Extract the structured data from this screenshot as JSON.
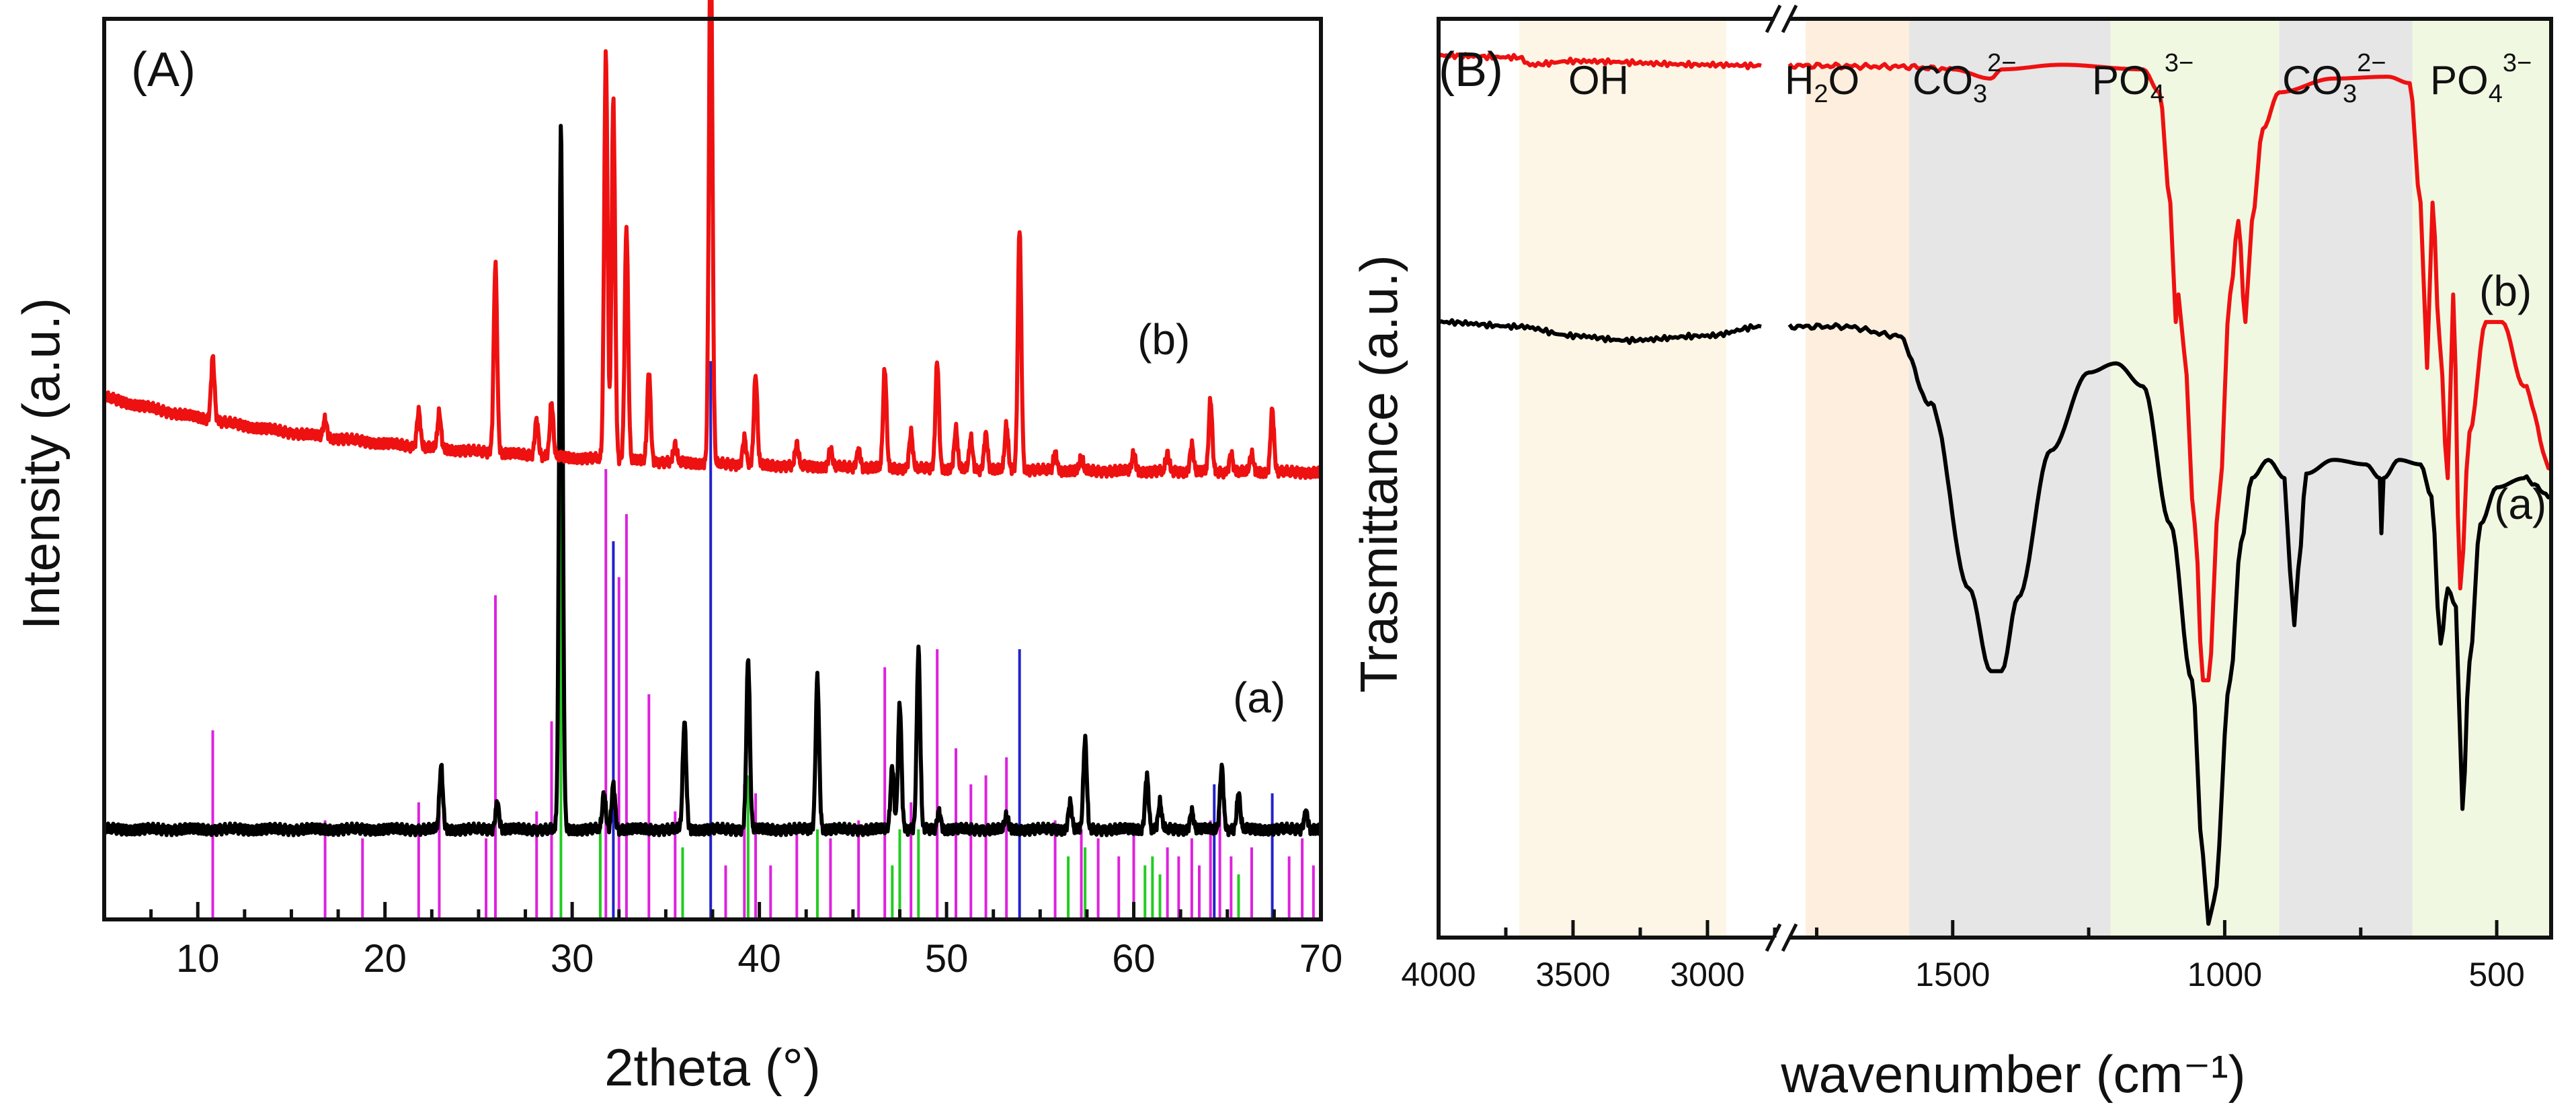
{
  "chart_data": [
    {
      "type": "line",
      "panel_label": "(A)",
      "xlabel": "2theta (°)",
      "ylabel": "Intensity (a.u.)",
      "xlim": [
        5,
        70
      ],
      "x_ticks": [
        10,
        20,
        30,
        40,
        50,
        60,
        70
      ],
      "y_ticks_labeled": false,
      "colors": {
        "a": "#000000",
        "b": "#ee1111",
        "ref_magenta": "#dd22dd",
        "ref_green": "#22cc22",
        "ref_blue": "#2222cc"
      },
      "series": [
        {
          "name": "(a)",
          "color": "#000000",
          "baseline": 0.1,
          "drift": 0.0,
          "peaks": [
            {
              "x": 23.0,
              "h": 0.07
            },
            {
              "x": 26.0,
              "h": 0.03
            },
            {
              "x": 29.4,
              "h": 0.78
            },
            {
              "x": 31.7,
              "h": 0.04
            },
            {
              "x": 32.2,
              "h": 0.05
            },
            {
              "x": 36.0,
              "h": 0.12
            },
            {
              "x": 39.4,
              "h": 0.19
            },
            {
              "x": 43.1,
              "h": 0.17
            },
            {
              "x": 47.1,
              "h": 0.07
            },
            {
              "x": 47.5,
              "h": 0.14
            },
            {
              "x": 48.5,
              "h": 0.2
            },
            {
              "x": 49.6,
              "h": 0.02
            },
            {
              "x": 53.2,
              "h": 0.015
            },
            {
              "x": 56.6,
              "h": 0.03
            },
            {
              "x": 57.4,
              "h": 0.1
            },
            {
              "x": 60.7,
              "h": 0.06
            },
            {
              "x": 61.4,
              "h": 0.03
            },
            {
              "x": 63.1,
              "h": 0.02
            },
            {
              "x": 64.7,
              "h": 0.07
            },
            {
              "x": 65.6,
              "h": 0.04
            },
            {
              "x": 69.2,
              "h": 0.02
            }
          ]
        },
        {
          "name": "(b)",
          "color": "#ee1111",
          "baseline": 0.495,
          "drift": 0.085,
          "peaks": [
            {
              "x": 10.8,
              "h": 0.07
            },
            {
              "x": 16.8,
              "h": 0.02
            },
            {
              "x": 21.8,
              "h": 0.04
            },
            {
              "x": 22.9,
              "h": 0.04
            },
            {
              "x": 25.9,
              "h": 0.21
            },
            {
              "x": 28.1,
              "h": 0.04
            },
            {
              "x": 28.9,
              "h": 0.06
            },
            {
              "x": 31.8,
              "h": 0.45
            },
            {
              "x": 32.2,
              "h": 0.4
            },
            {
              "x": 32.9,
              "h": 0.26
            },
            {
              "x": 34.1,
              "h": 0.1
            },
            {
              "x": 35.5,
              "h": 0.02
            },
            {
              "x": 37.4,
              "h": 0.6
            },
            {
              "x": 39.2,
              "h": 0.03
            },
            {
              "x": 39.8,
              "h": 0.1
            },
            {
              "x": 42.0,
              "h": 0.025
            },
            {
              "x": 43.8,
              "h": 0.02
            },
            {
              "x": 45.3,
              "h": 0.02
            },
            {
              "x": 46.7,
              "h": 0.11
            },
            {
              "x": 48.1,
              "h": 0.04
            },
            {
              "x": 49.5,
              "h": 0.12
            },
            {
              "x": 50.5,
              "h": 0.045
            },
            {
              "x": 51.3,
              "h": 0.035
            },
            {
              "x": 52.1,
              "h": 0.04
            },
            {
              "x": 53.2,
              "h": 0.05
            },
            {
              "x": 53.9,
              "h": 0.27
            },
            {
              "x": 55.8,
              "h": 0.02
            },
            {
              "x": 57.2,
              "h": 0.015
            },
            {
              "x": 60.0,
              "h": 0.02
            },
            {
              "x": 61.8,
              "h": 0.02
            },
            {
              "x": 63.1,
              "h": 0.03
            },
            {
              "x": 64.1,
              "h": 0.08
            },
            {
              "x": 65.2,
              "h": 0.02
            },
            {
              "x": 66.3,
              "h": 0.02
            },
            {
              "x": 67.4,
              "h": 0.07
            }
          ]
        }
      ],
      "reference_lines": [
        {
          "x": 10.8,
          "h": 0.21,
          "color": "magenta"
        },
        {
          "x": 16.8,
          "h": 0.11,
          "color": "magenta"
        },
        {
          "x": 18.8,
          "h": 0.09,
          "color": "magenta"
        },
        {
          "x": 21.8,
          "h": 0.13,
          "color": "magenta"
        },
        {
          "x": 22.9,
          "h": 0.12,
          "color": "magenta"
        },
        {
          "x": 25.4,
          "h": 0.09,
          "color": "magenta"
        },
        {
          "x": 25.9,
          "h": 0.36,
          "color": "magenta"
        },
        {
          "x": 28.1,
          "h": 0.12,
          "color": "magenta"
        },
        {
          "x": 28.9,
          "h": 0.22,
          "color": "magenta"
        },
        {
          "x": 29.4,
          "h": 0.62,
          "color": "green"
        },
        {
          "x": 31.5,
          "h": 0.11,
          "color": "green"
        },
        {
          "x": 31.8,
          "h": 0.5,
          "color": "magenta"
        },
        {
          "x": 32.2,
          "h": 0.42,
          "color": "blue"
        },
        {
          "x": 32.5,
          "h": 0.38,
          "color": "magenta"
        },
        {
          "x": 32.9,
          "h": 0.45,
          "color": "magenta"
        },
        {
          "x": 34.1,
          "h": 0.25,
          "color": "magenta"
        },
        {
          "x": 35.5,
          "h": 0.12,
          "color": "magenta"
        },
        {
          "x": 35.9,
          "h": 0.08,
          "color": "green"
        },
        {
          "x": 37.4,
          "h": 0.62,
          "color": "blue"
        },
        {
          "x": 38.2,
          "h": 0.06,
          "color": "magenta"
        },
        {
          "x": 39.2,
          "h": 0.15,
          "color": "magenta"
        },
        {
          "x": 39.4,
          "h": 0.16,
          "color": "green"
        },
        {
          "x": 39.8,
          "h": 0.14,
          "color": "magenta"
        },
        {
          "x": 40.6,
          "h": 0.06,
          "color": "magenta"
        },
        {
          "x": 42.0,
          "h": 0.1,
          "color": "magenta"
        },
        {
          "x": 43.1,
          "h": 0.1,
          "color": "green"
        },
        {
          "x": 43.8,
          "h": 0.09,
          "color": "magenta"
        },
        {
          "x": 45.3,
          "h": 0.11,
          "color": "magenta"
        },
        {
          "x": 46.7,
          "h": 0.28,
          "color": "magenta"
        },
        {
          "x": 47.1,
          "h": 0.06,
          "color": "green"
        },
        {
          "x": 47.5,
          "h": 0.1,
          "color": "green"
        },
        {
          "x": 48.1,
          "h": 0.13,
          "color": "magenta"
        },
        {
          "x": 48.5,
          "h": 0.1,
          "color": "green"
        },
        {
          "x": 49.5,
          "h": 0.3,
          "color": "magenta"
        },
        {
          "x": 50.5,
          "h": 0.19,
          "color": "magenta"
        },
        {
          "x": 51.3,
          "h": 0.15,
          "color": "magenta"
        },
        {
          "x": 52.1,
          "h": 0.16,
          "color": "magenta"
        },
        {
          "x": 53.2,
          "h": 0.18,
          "color": "magenta"
        },
        {
          "x": 53.9,
          "h": 0.3,
          "color": "blue"
        },
        {
          "x": 55.8,
          "h": 0.11,
          "color": "magenta"
        },
        {
          "x": 56.5,
          "h": 0.07,
          "color": "green"
        },
        {
          "x": 57.2,
          "h": 0.1,
          "color": "magenta"
        },
        {
          "x": 57.4,
          "h": 0.08,
          "color": "green"
        },
        {
          "x": 58.1,
          "h": 0.09,
          "color": "magenta"
        },
        {
          "x": 59.2,
          "h": 0.07,
          "color": "magenta"
        },
        {
          "x": 60.0,
          "h": 0.1,
          "color": "magenta"
        },
        {
          "x": 60.6,
          "h": 0.06,
          "color": "green"
        },
        {
          "x": 61.0,
          "h": 0.07,
          "color": "green"
        },
        {
          "x": 61.4,
          "h": 0.05,
          "color": "green"
        },
        {
          "x": 61.8,
          "h": 0.08,
          "color": "magenta"
        },
        {
          "x": 62.4,
          "h": 0.07,
          "color": "magenta"
        },
        {
          "x": 63.1,
          "h": 0.09,
          "color": "magenta"
        },
        {
          "x": 63.5,
          "h": 0.06,
          "color": "magenta"
        },
        {
          "x": 64.1,
          "h": 0.11,
          "color": "magenta"
        },
        {
          "x": 64.3,
          "h": 0.15,
          "color": "blue"
        },
        {
          "x": 64.6,
          "h": 0.12,
          "color": "magenta"
        },
        {
          "x": 65.2,
          "h": 0.07,
          "color": "magenta"
        },
        {
          "x": 65.6,
          "h": 0.05,
          "color": "green"
        },
        {
          "x": 66.3,
          "h": 0.08,
          "color": "magenta"
        },
        {
          "x": 67.4,
          "h": 0.14,
          "color": "blue"
        },
        {
          "x": 68.3,
          "h": 0.07,
          "color": "magenta"
        },
        {
          "x": 69.0,
          "h": 0.09,
          "color": "magenta"
        },
        {
          "x": 69.6,
          "h": 0.06,
          "color": "magenta"
        }
      ],
      "trace_labels": [
        {
          "text": "(a)",
          "series": "(a)"
        },
        {
          "text": "(b)",
          "series": "(b)"
        }
      ]
    },
    {
      "type": "line",
      "panel_label": "(B)",
      "xlabel": "wavenumber (cm⁻¹)",
      "ylabel": "Trasmittance (a.u.)",
      "x_reversed": true,
      "axis_break": true,
      "segments": [
        {
          "xlim": [
            4000,
            2750
          ],
          "ticks": [
            4000,
            3500,
            3000
          ]
        },
        {
          "xlim": [
            1800,
            400
          ],
          "ticks": [
            1500,
            1000,
            500
          ]
        }
      ],
      "colors": {
        "a": "#000000",
        "b": "#ee1111"
      },
      "bands": [
        {
          "name": "OH",
          "from": 3700,
          "to": 2930,
          "color": "#fdf5e6"
        },
        {
          "name": "H2O",
          "from": 1770,
          "to": 1580,
          "color": "#fdeedd"
        },
        {
          "name": "CO3 2-",
          "from": 1580,
          "to": 1210,
          "color": "#e6e6e6"
        },
        {
          "name": "PO4 3-",
          "from": 1210,
          "to": 900,
          "color": "#f1f8e2"
        },
        {
          "name": "CO3 2-",
          "from": 900,
          "to": 655,
          "color": "#e6e6e6"
        },
        {
          "name": "PO4 3-",
          "from": 655,
          "to": 400,
          "color": "#f1f8e2"
        }
      ],
      "band_text": {
        "oh": "OH",
        "h2o_main": "H",
        "h2o_sub": "2",
        "h2o_tail": "O",
        "co3_main": "CO",
        "co3_sub": "3",
        "co3_sup": "2−",
        "po4_main": "PO",
        "po4_sub": "4",
        "po4_sup": "3−"
      },
      "series": [
        {
          "name": "(a)",
          "color": "#000000",
          "points": [
            [
              4000,
              0.33
            ],
            [
              3700,
              0.335
            ],
            [
              3500,
              0.345
            ],
            [
              3300,
              0.35
            ],
            [
              3000,
              0.345
            ],
            [
              2800,
              0.335
            ],
            [
              1800,
              0.335
            ],
            [
              1700,
              0.335
            ],
            [
              1600,
              0.345
            ],
            [
              1540,
              0.42
            ],
            [
              1470,
              0.62
            ],
            [
              1430,
              0.71
            ],
            [
              1410,
              0.71
            ],
            [
              1380,
              0.63
            ],
            [
              1320,
              0.47
            ],
            [
              1250,
              0.385
            ],
            [
              1200,
              0.375
            ],
            [
              1150,
              0.4
            ],
            [
              1100,
              0.55
            ],
            [
              1060,
              0.72
            ],
            [
              1040,
              0.91
            ],
            [
              1030,
              0.985
            ],
            [
              1020,
              0.96
            ],
            [
              990,
              0.72
            ],
            [
              970,
              0.57
            ],
            [
              950,
              0.5
            ],
            [
              920,
              0.48
            ],
            [
              890,
              0.5
            ],
            [
              880,
              0.6
            ],
            [
              872,
              0.66
            ],
            [
              865,
              0.6
            ],
            [
              850,
              0.495
            ],
            [
              800,
              0.48
            ],
            [
              740,
              0.485
            ],
            [
              715,
              0.5
            ],
            [
              712,
              0.56
            ],
            [
              708,
              0.5
            ],
            [
              680,
              0.48
            ],
            [
              640,
              0.485
            ],
            [
              620,
              0.52
            ],
            [
              603,
              0.68
            ],
            [
              590,
              0.62
            ],
            [
              575,
              0.64
            ],
            [
              563,
              0.86
            ],
            [
              550,
              0.7
            ],
            [
              530,
              0.55
            ],
            [
              500,
              0.51
            ],
            [
              450,
              0.5
            ],
            [
              400,
              0.52
            ]
          ]
        },
        {
          "name": "(b)",
          "color": "#ee1111",
          "points": [
            [
              4000,
              0.04
            ],
            [
              3700,
              0.042
            ],
            [
              3660,
              0.05
            ],
            [
              3500,
              0.046
            ],
            [
              3000,
              0.05
            ],
            [
              2800,
              0.051
            ],
            [
              1800,
              0.051
            ],
            [
              1600,
              0.052
            ],
            [
              1500,
              0.055
            ],
            [
              1430,
              0.065
            ],
            [
              1410,
              0.055
            ],
            [
              1300,
              0.05
            ],
            [
              1150,
              0.055
            ],
            [
              1120,
              0.08
            ],
            [
              1100,
              0.2
            ],
            [
              1090,
              0.33
            ],
            [
              1085,
              0.3
            ],
            [
              1075,
              0.36
            ],
            [
              1055,
              0.55
            ],
            [
              1040,
              0.72
            ],
            [
              1030,
              0.72
            ],
            [
              1010,
              0.52
            ],
            [
              990,
              0.3
            ],
            [
              975,
              0.22
            ],
            [
              962,
              0.33
            ],
            [
              950,
              0.22
            ],
            [
              930,
              0.12
            ],
            [
              900,
              0.08
            ],
            [
              800,
              0.065
            ],
            [
              700,
              0.063
            ],
            [
              660,
              0.07
            ],
            [
              640,
              0.2
            ],
            [
              628,
              0.38
            ],
            [
              618,
              0.2
            ],
            [
              605,
              0.35
            ],
            [
              590,
              0.5
            ],
            [
              580,
              0.3
            ],
            [
              567,
              0.62
            ],
            [
              550,
              0.45
            ],
            [
              520,
              0.33
            ],
            [
              490,
              0.33
            ],
            [
              450,
              0.4
            ],
            [
              400,
              0.49
            ]
          ]
        }
      ],
      "trace_labels": [
        {
          "text": "(a)",
          "series": "(a)"
        },
        {
          "text": "(b)",
          "series": "(b)"
        }
      ]
    }
  ]
}
